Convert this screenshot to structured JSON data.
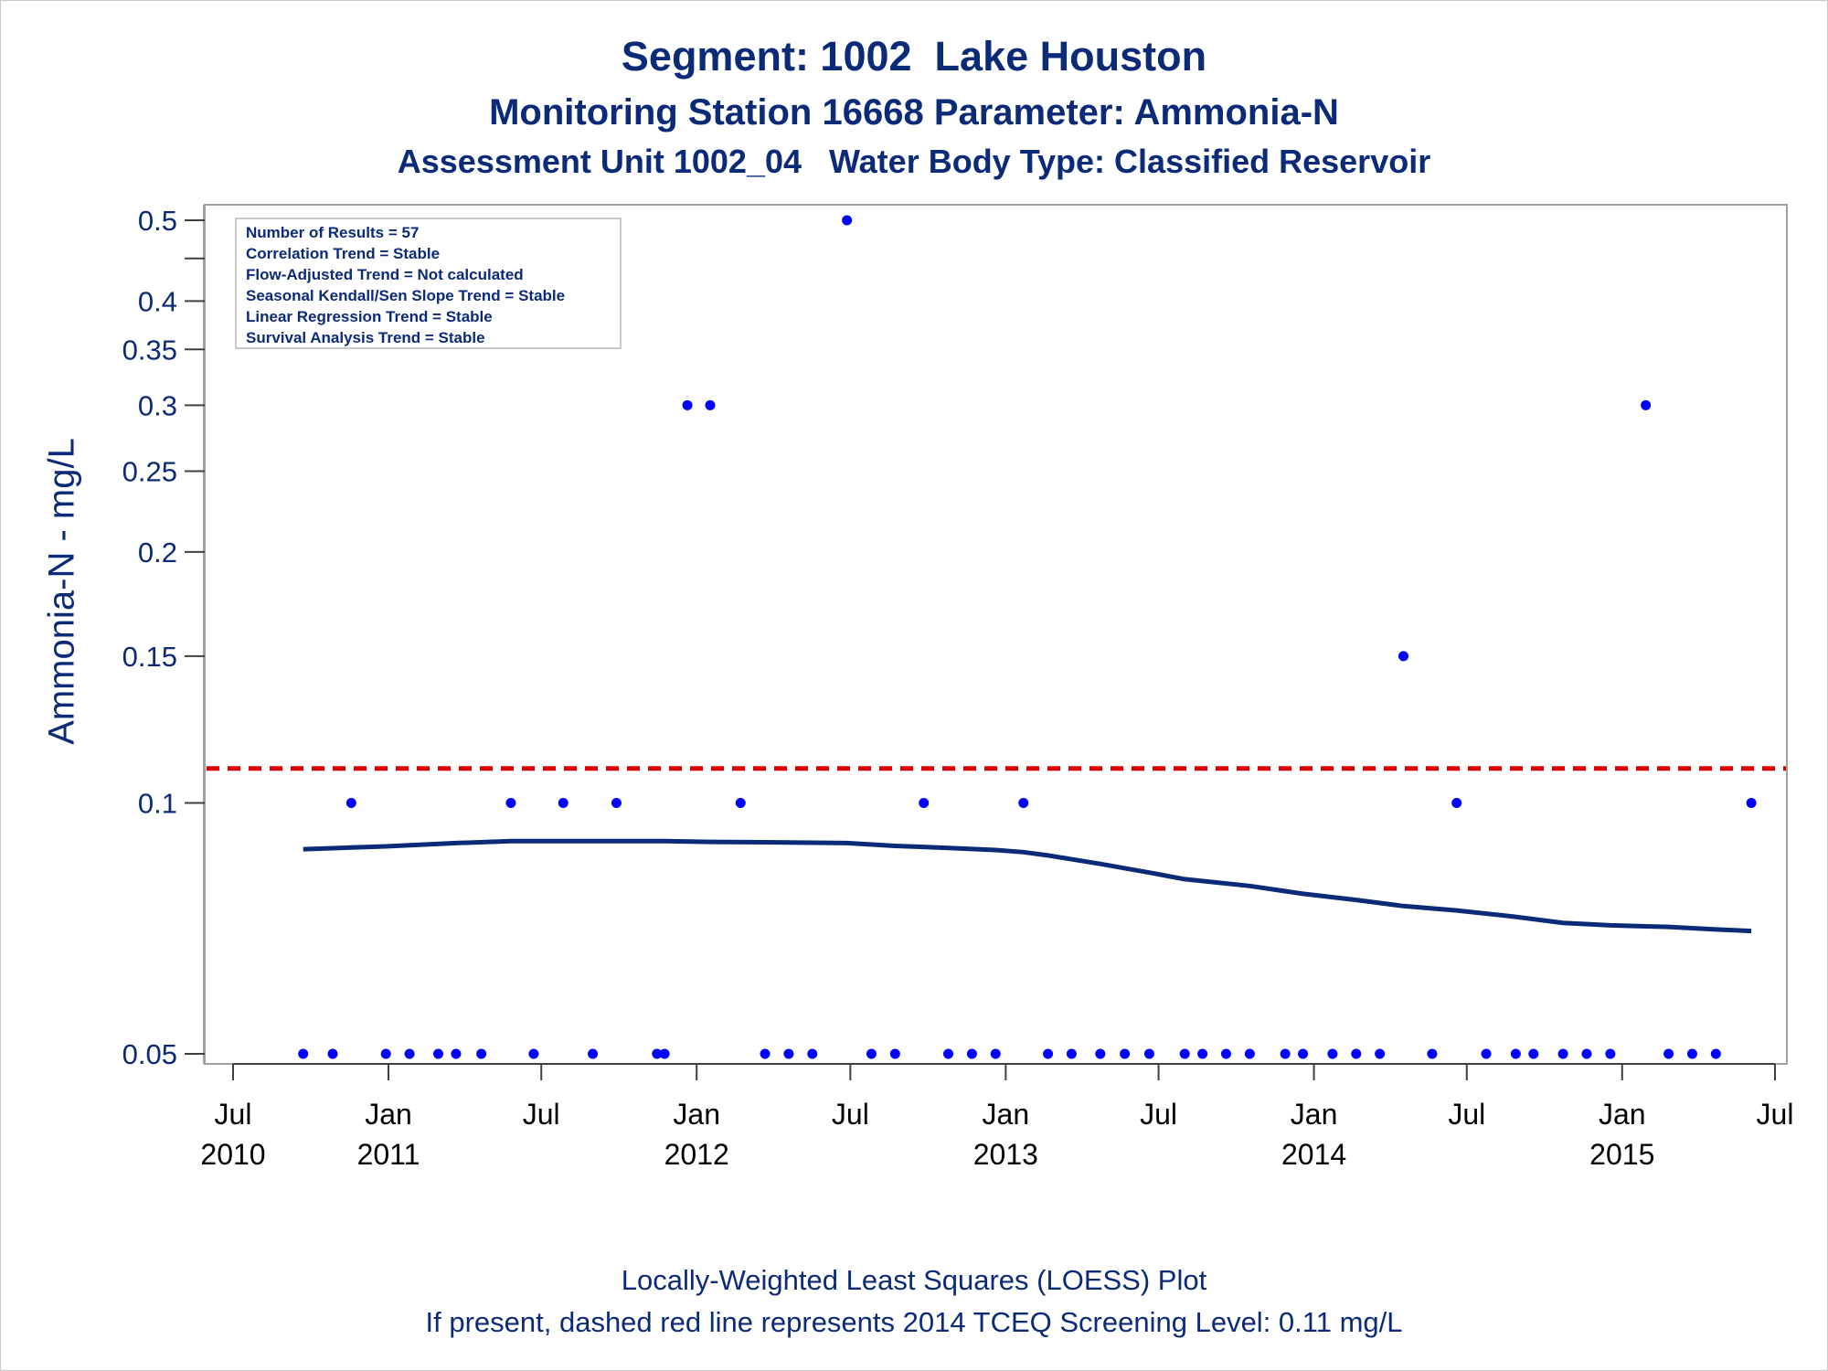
{
  "titles": {
    "line1": "Segment: 1002  Lake Houston",
    "line2": "Monitoring Station 16668 Parameter: Ammonia-N",
    "line3": "Assessment Unit 1002_04   Water Body Type: Classified Reservoir"
  },
  "footer": {
    "line1": "Locally-Weighted Least Squares (LOESS) Plot",
    "line2": "If present, dashed red line represents 2014 TCEQ Screening Level: 0.11 mg/L"
  },
  "colors": {
    "title": "#0b2a78",
    "points": "#0000ff",
    "loess": "#0b2a78",
    "screening": "#dd0000",
    "frame": "#a0a0a0"
  },
  "chart_data": {
    "type": "scatter",
    "ylabel": "Ammonia-N - mg/L",
    "xlabel": "",
    "y_scale": "log",
    "ylim": [
      0.05,
      0.5
    ],
    "y_ticks": [
      0.05,
      0.1,
      0.15,
      0.2,
      0.25,
      0.3,
      0.35,
      0.4,
      0.5
    ],
    "y_tick_labels": [
      "0.05",
      "0.1",
      "0.15",
      "0.2",
      "0.25",
      "0.3",
      "0.35",
      "0.4",
      "0.5"
    ],
    "xlim": [
      "2010-07-01",
      "2015-07-01"
    ],
    "x_ticks": [
      {
        "date": "2010-07-01",
        "month": "Jul",
        "year": "2010"
      },
      {
        "date": "2011-01-01",
        "month": "Jan",
        "year": "2011"
      },
      {
        "date": "2011-07-01",
        "month": "Jul",
        "year": ""
      },
      {
        "date": "2012-01-01",
        "month": "Jan",
        "year": "2012"
      },
      {
        "date": "2012-07-01",
        "month": "Jul",
        "year": ""
      },
      {
        "date": "2013-01-01",
        "month": "Jan",
        "year": "2013"
      },
      {
        "date": "2013-07-01",
        "month": "Jul",
        "year": ""
      },
      {
        "date": "2014-01-01",
        "month": "Jan",
        "year": "2014"
      },
      {
        "date": "2014-07-01",
        "month": "Jul",
        "year": ""
      },
      {
        "date": "2015-01-01",
        "month": "Jan",
        "year": "2015"
      },
      {
        "date": "2015-07-01",
        "month": "Jul",
        "year": ""
      }
    ],
    "legend": {
      "placement": "top-left",
      "lines": [
        "Number of Results = 57",
        "Correlation Trend = Stable",
        "Flow-Adjusted Trend = Not calculated",
        "Seasonal Kendall/Sen Slope Trend = Stable",
        "Linear Regression Trend = Stable",
        "Survival Analysis Trend = Stable"
      ]
    },
    "screening_level": 0.11,
    "points": [
      {
        "x": "2010-09-22",
        "y": 0.05
      },
      {
        "x": "2010-10-27",
        "y": 0.05
      },
      {
        "x": "2010-11-18",
        "y": 0.1
      },
      {
        "x": "2010-12-29",
        "y": 0.05
      },
      {
        "x": "2011-01-26",
        "y": 0.05
      },
      {
        "x": "2011-03-01",
        "y": 0.05
      },
      {
        "x": "2011-03-22",
        "y": 0.05
      },
      {
        "x": "2011-04-21",
        "y": 0.05
      },
      {
        "x": "2011-05-26",
        "y": 0.1
      },
      {
        "x": "2011-06-22",
        "y": 0.05
      },
      {
        "x": "2011-07-27",
        "y": 0.1
      },
      {
        "x": "2011-08-31",
        "y": 0.05
      },
      {
        "x": "2011-09-28",
        "y": 0.1
      },
      {
        "x": "2011-11-15",
        "y": 0.05
      },
      {
        "x": "2011-11-24",
        "y": 0.05
      },
      {
        "x": "2011-12-21",
        "y": 0.3
      },
      {
        "x": "2012-01-17",
        "y": 0.3
      },
      {
        "x": "2012-02-22",
        "y": 0.1
      },
      {
        "x": "2012-03-22",
        "y": 0.05
      },
      {
        "x": "2012-04-19",
        "y": 0.05
      },
      {
        "x": "2012-05-17",
        "y": 0.05
      },
      {
        "x": "2012-06-27",
        "y": 0.5
      },
      {
        "x": "2012-07-26",
        "y": 0.05
      },
      {
        "x": "2012-08-23",
        "y": 0.05
      },
      {
        "x": "2012-09-26",
        "y": 0.1
      },
      {
        "x": "2012-10-25",
        "y": 0.05
      },
      {
        "x": "2012-11-22",
        "y": 0.05
      },
      {
        "x": "2012-12-20",
        "y": 0.05
      },
      {
        "x": "2013-01-22",
        "y": 0.1
      },
      {
        "x": "2013-02-20",
        "y": 0.05
      },
      {
        "x": "2013-03-20",
        "y": 0.05
      },
      {
        "x": "2013-04-23",
        "y": 0.05
      },
      {
        "x": "2013-05-22",
        "y": 0.05
      },
      {
        "x": "2013-06-20",
        "y": 0.05
      },
      {
        "x": "2013-08-01",
        "y": 0.05
      },
      {
        "x": "2013-08-22",
        "y": 0.05
      },
      {
        "x": "2013-09-19",
        "y": 0.05
      },
      {
        "x": "2013-10-17",
        "y": 0.05
      },
      {
        "x": "2013-11-28",
        "y": 0.05
      },
      {
        "x": "2013-12-19",
        "y": 0.05
      },
      {
        "x": "2014-01-23",
        "y": 0.05
      },
      {
        "x": "2014-02-20",
        "y": 0.05
      },
      {
        "x": "2014-03-20",
        "y": 0.05
      },
      {
        "x": "2014-04-17",
        "y": 0.15
      },
      {
        "x": "2014-05-21",
        "y": 0.05
      },
      {
        "x": "2014-06-19",
        "y": 0.1
      },
      {
        "x": "2014-07-24",
        "y": 0.05
      },
      {
        "x": "2014-08-28",
        "y": 0.05
      },
      {
        "x": "2014-09-18",
        "y": 0.05
      },
      {
        "x": "2014-10-23",
        "y": 0.05
      },
      {
        "x": "2014-11-20",
        "y": 0.05
      },
      {
        "x": "2014-12-18",
        "y": 0.05
      },
      {
        "x": "2015-01-29",
        "y": 0.3
      },
      {
        "x": "2015-02-25",
        "y": 0.05
      },
      {
        "x": "2015-03-25",
        "y": 0.05
      },
      {
        "x": "2015-04-22",
        "y": 0.05
      },
      {
        "x": "2015-06-03",
        "y": 0.1
      }
    ],
    "loess": [
      {
        "x": "2010-09-22",
        "y": 0.088
      },
      {
        "x": "2010-12-29",
        "y": 0.0887
      },
      {
        "x": "2011-03-22",
        "y": 0.0895
      },
      {
        "x": "2011-05-26",
        "y": 0.09
      },
      {
        "x": "2011-08-31",
        "y": 0.09
      },
      {
        "x": "2011-11-24",
        "y": 0.09
      },
      {
        "x": "2012-01-17",
        "y": 0.0898
      },
      {
        "x": "2012-03-22",
        "y": 0.0897
      },
      {
        "x": "2012-06-27",
        "y": 0.0895
      },
      {
        "x": "2012-08-23",
        "y": 0.0888
      },
      {
        "x": "2012-10-25",
        "y": 0.0883
      },
      {
        "x": "2012-12-20",
        "y": 0.0878
      },
      {
        "x": "2013-01-22",
        "y": 0.0873
      },
      {
        "x": "2013-02-20",
        "y": 0.0865
      },
      {
        "x": "2013-04-23",
        "y": 0.0845
      },
      {
        "x": "2013-06-20",
        "y": 0.0825
      },
      {
        "x": "2013-08-01",
        "y": 0.081
      },
      {
        "x": "2013-10-17",
        "y": 0.0795
      },
      {
        "x": "2013-12-19",
        "y": 0.0778
      },
      {
        "x": "2014-02-20",
        "y": 0.0765
      },
      {
        "x": "2014-04-17",
        "y": 0.0752
      },
      {
        "x": "2014-06-19",
        "y": 0.0743
      },
      {
        "x": "2014-08-28",
        "y": 0.073
      },
      {
        "x": "2014-10-23",
        "y": 0.0718
      },
      {
        "x": "2014-12-18",
        "y": 0.0713
      },
      {
        "x": "2015-02-25",
        "y": 0.071
      },
      {
        "x": "2015-04-22",
        "y": 0.0705
      },
      {
        "x": "2015-06-03",
        "y": 0.0702
      }
    ]
  }
}
